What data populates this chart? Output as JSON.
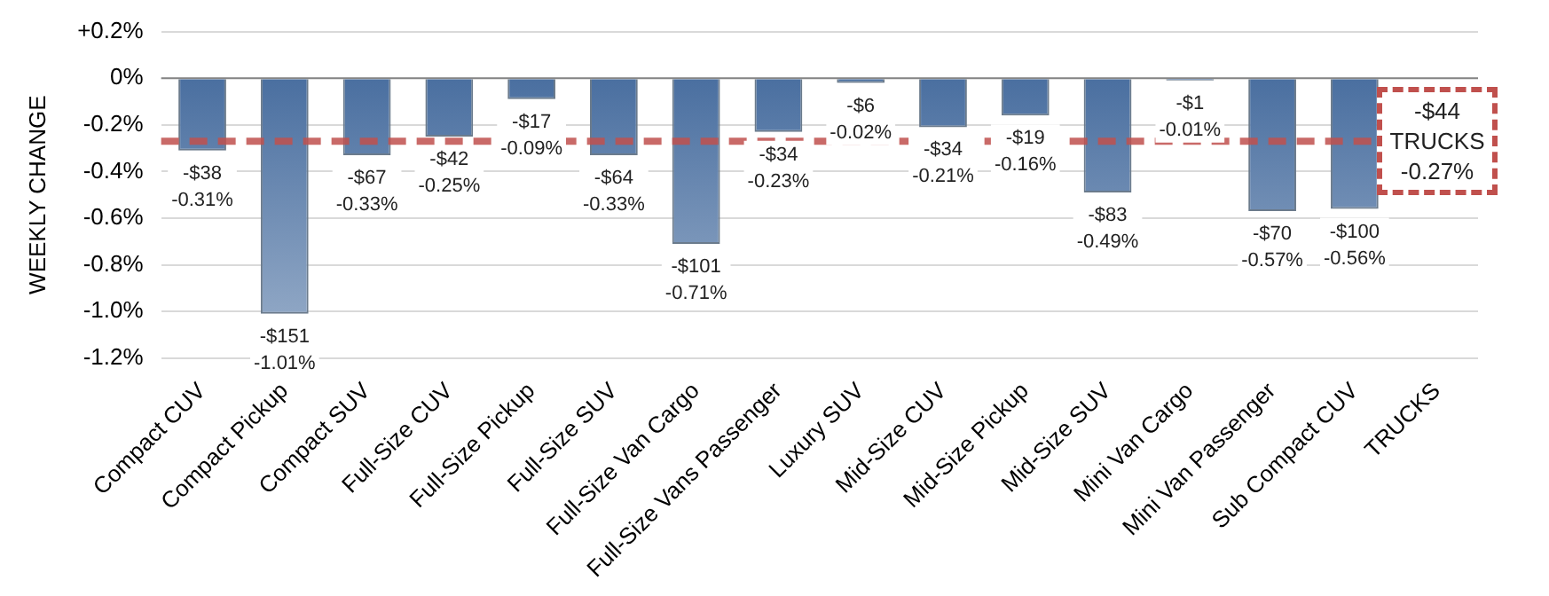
{
  "chart_data": {
    "type": "bar",
    "ylabel": "WEEKLY CHANGE",
    "categories": [
      "Compact CUV",
      "Compact Pickup",
      "Compact SUV",
      "Full-Size CUV",
      "Full-Size Pickup",
      "Full-Size SUV",
      "Full-Size Van Cargo",
      "Full-Size Vans Passenger",
      "Luxury SUV",
      "Mid-Size CUV",
      "Mid-Size Pickup",
      "Mid-Size SUV",
      "Mini Van Cargo",
      "Mini Van Passenger",
      "Sub Compact CUV",
      "TRUCKS"
    ],
    "values": [
      -0.31,
      -1.01,
      -0.33,
      -0.25,
      -0.09,
      -0.33,
      -0.71,
      -0.23,
      -0.02,
      -0.21,
      -0.16,
      -0.49,
      -0.01,
      -0.57,
      -0.56,
      null
    ],
    "value_labels": [
      "-$38\n-0.31%",
      "-$151\n-1.01%",
      "-$67\n-0.33%",
      "-$42\n-0.25%",
      "-$17\n-0.09%",
      "-$64\n-0.33%",
      "-$101\n-0.71%",
      "-$34\n-0.23%",
      "-$6\n-0.02%",
      "-$34\n-0.21%",
      "-$19\n-0.16%",
      "-$83\n-0.49%",
      "-$1\n-0.01%",
      "-$70\n-0.57%",
      "-$100\n-0.56%",
      null
    ],
    "color": "#4a6fa0",
    "ylim": [
      -1.2,
      0.2
    ],
    "yticks": [
      {
        "value": 0.2,
        "label": "+0.2%"
      },
      {
        "value": 0,
        "label": "0%"
      },
      {
        "value": -0.2,
        "label": "-0.2%"
      },
      {
        "value": -0.4,
        "label": "-0.4%"
      },
      {
        "value": -0.6,
        "label": "-0.6%"
      },
      {
        "value": -0.8,
        "label": "-0.8%"
      },
      {
        "value": -1.0,
        "label": "-1.0%"
      },
      {
        "value": -1.2,
        "label": "-1.2%"
      }
    ],
    "grid": "y",
    "ref_lines": [
      {
        "axis": "y",
        "value": -0.27,
        "label": "-$44\nTRUCKS\n-0.27%",
        "color": "#c0504d",
        "line_style": "dashed"
      }
    ]
  }
}
